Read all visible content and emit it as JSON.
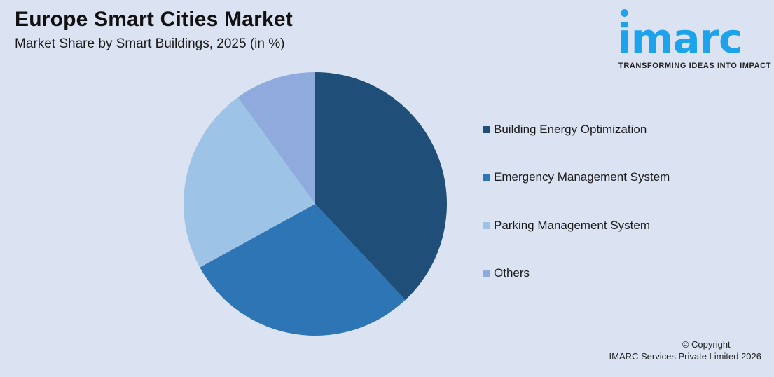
{
  "header": {
    "title": "Europe Smart Cities Market",
    "subtitle": "Market Share by Smart Buildings, 2025 (in %)"
  },
  "logo": {
    "wordmark": "imarc",
    "tagline": "TRANSFORMING IDEAS INTO IMPACT",
    "color": "#1ca3ec"
  },
  "legend": {
    "items": [
      {
        "label": "Building Energy Optimization",
        "color": "#1f4e79"
      },
      {
        "label": "Emergency Management System",
        "color": "#2e75b6"
      },
      {
        "label": "Parking Management System",
        "color": "#9dc3e6"
      },
      {
        "label": "Others",
        "color": "#8faadc"
      }
    ]
  },
  "footer": {
    "copyright_line1": "© Copyright",
    "copyright_line2": "IMARC Services Private Limited 2026"
  },
  "chart_data": {
    "type": "pie",
    "title": "Europe Smart Cities Market",
    "subtitle": "Market Share by Smart Buildings, 2025 (in %)",
    "categories": [
      "Building Energy Optimization",
      "Emergency Management System",
      "Parking Management System",
      "Others"
    ],
    "values": [
      38,
      29,
      23,
      10
    ],
    "colors": [
      "#1f4e79",
      "#2e75b6",
      "#9dc3e6",
      "#8faadc"
    ],
    "start_angle": "12 o'clock, clockwise",
    "legend_position": "right",
    "data_labels": false
  }
}
